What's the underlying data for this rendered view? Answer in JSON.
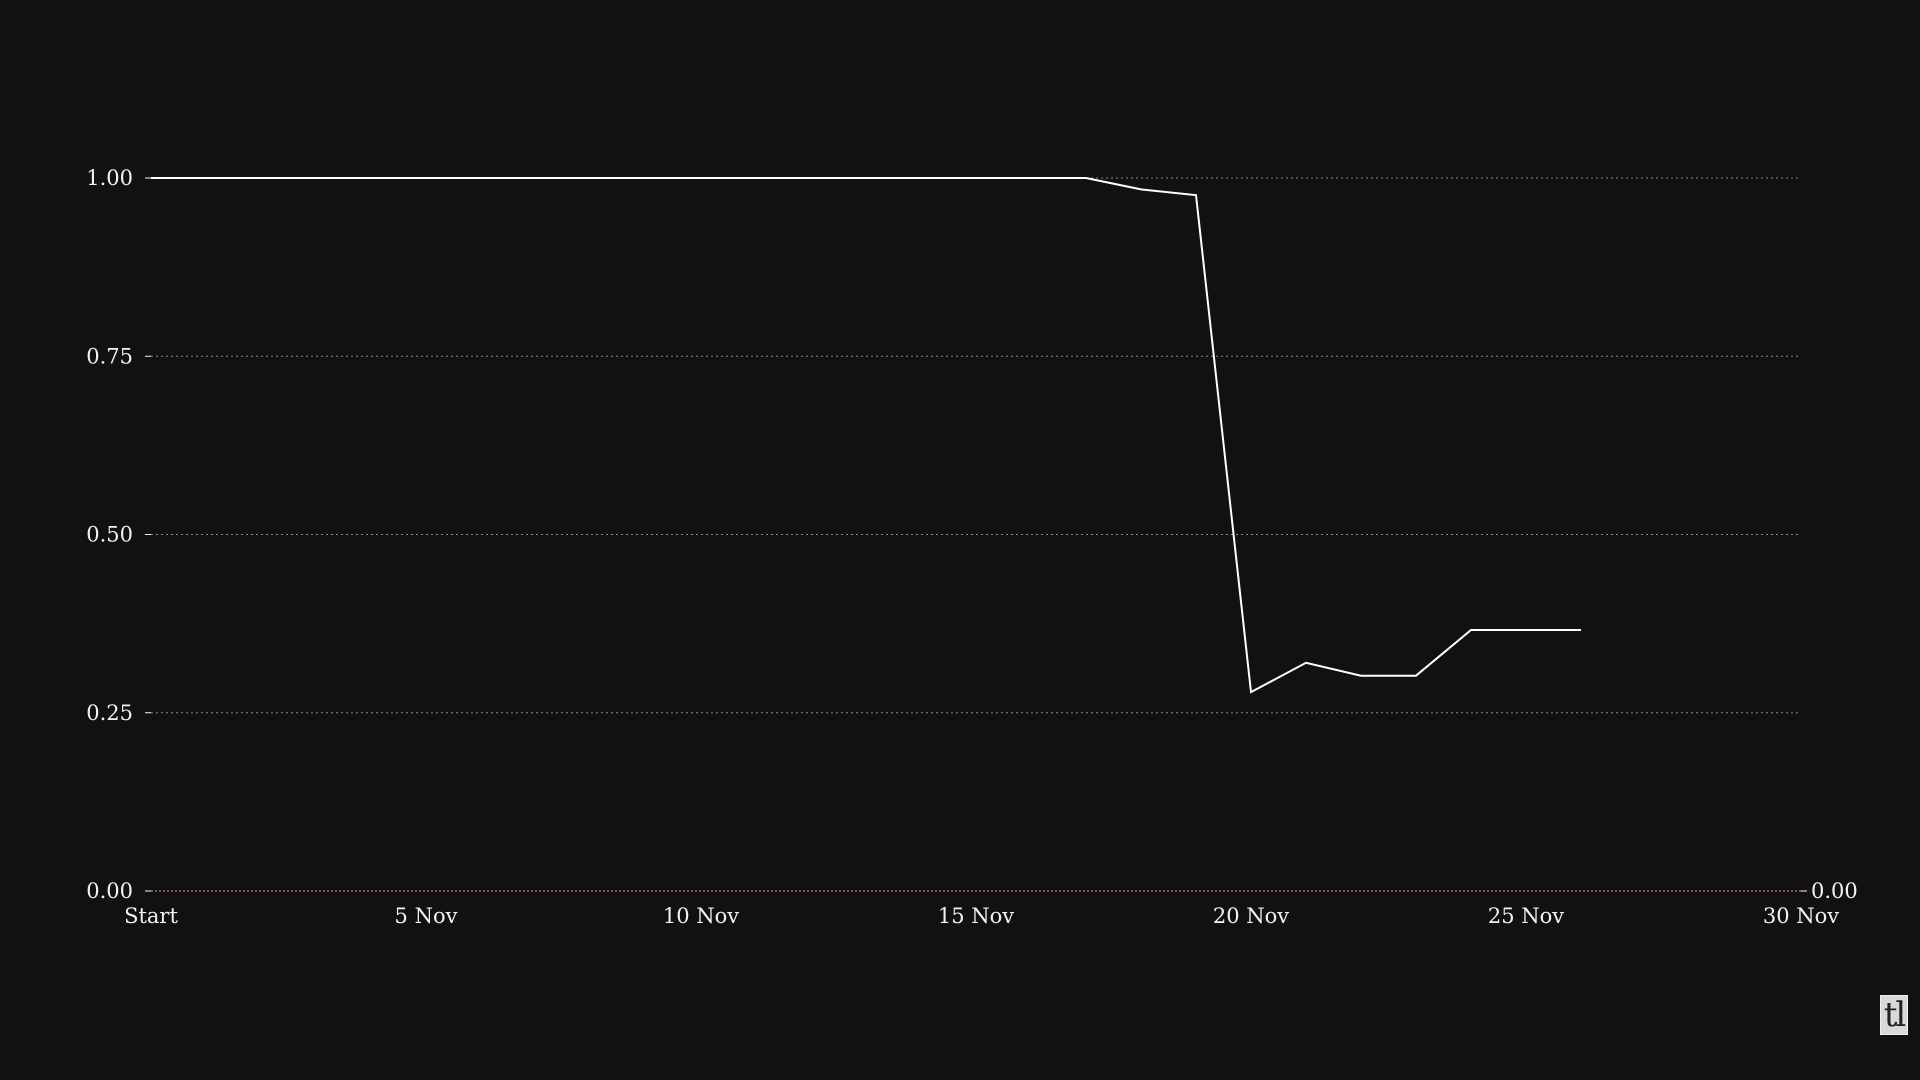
{
  "colors": {
    "background": "#111111",
    "line": "#ffffff",
    "grid": "#8a8a8a",
    "baseline": "#c87a6a",
    "text": "#f2f2f2"
  },
  "logo": {
    "text": "tl"
  },
  "chart_data": {
    "type": "line",
    "title": "",
    "xlabel": "",
    "ylabel": "",
    "x_tick_labels": [
      "Start",
      "5 Nov",
      "10 Nov",
      "15 Nov",
      "20 Nov",
      "25 Nov",
      "30 Nov"
    ],
    "x_tick_positions": [
      0,
      5,
      10,
      15,
      20,
      25,
      30
    ],
    "xlim": [
      0,
      30
    ],
    "ylim": [
      0,
      1
    ],
    "y_ticks": [
      "0.00",
      "0.25",
      "0.50",
      "0.75",
      "1.00"
    ],
    "y_tick_values": [
      0,
      0.25,
      0.5,
      0.75,
      1.0
    ],
    "right_axis_label": "0.00",
    "grid": "horizontal dotted",
    "series": [
      {
        "x": [
          0,
          17,
          18,
          19,
          20,
          21,
          22,
          23,
          24,
          25,
          26
        ],
        "values": [
          1.0,
          1.0,
          0.984,
          0.976,
          0.279,
          0.32,
          0.302,
          0.302,
          0.366,
          0.366,
          0.366
        ]
      }
    ]
  }
}
